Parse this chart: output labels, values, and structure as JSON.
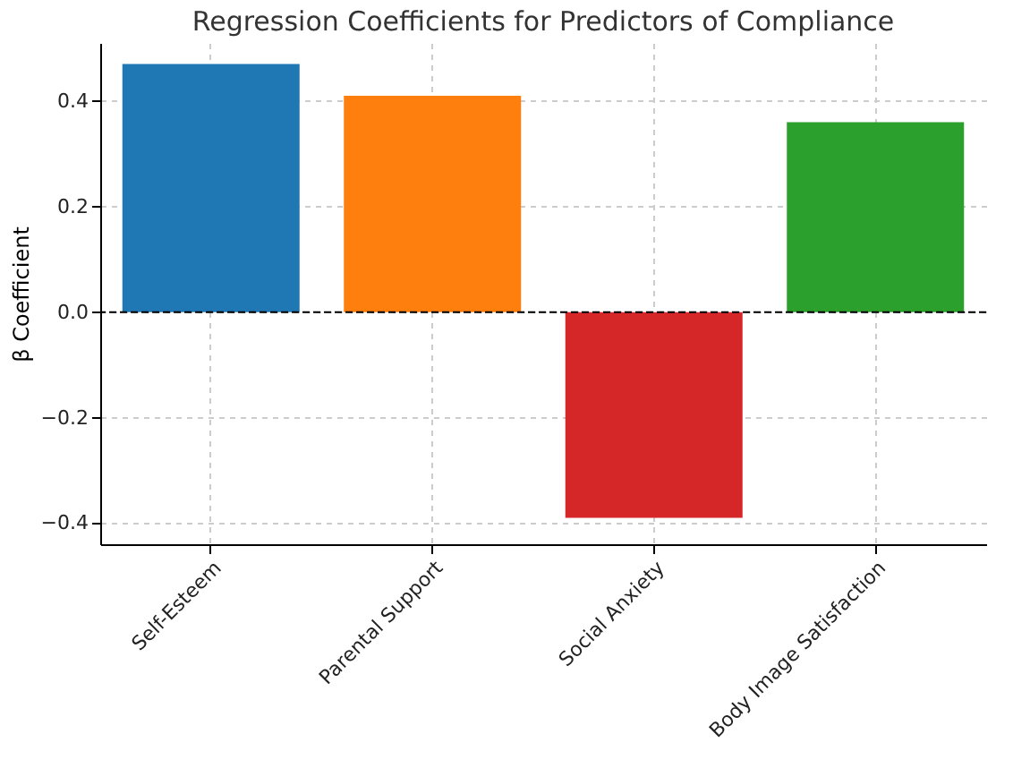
{
  "chart_data": {
    "type": "bar",
    "title": "Regression Coefficients for Predictors of Compliance",
    "ylabel": "β Coefficient",
    "categories": [
      "Self-Esteem",
      "Parental Support",
      "Social Anxiety",
      "Body Image Satisfaction"
    ],
    "values": [
      0.47,
      0.41,
      -0.39,
      0.36
    ],
    "colors": [
      "#1f77b4",
      "#ff7f0e",
      "#d62728",
      "#2ca02c"
    ],
    "ylim": [
      -0.44,
      0.51
    ],
    "yticks": [
      -0.4,
      -0.2,
      {
        "value": 0,
        "label": "0.0"
      },
      0.2,
      0.4
    ],
    "ref_lines": [
      {
        "axis": "y",
        "value": 0,
        "color": "#000000",
        "line_style": "dashed"
      }
    ],
    "grid": true
  }
}
